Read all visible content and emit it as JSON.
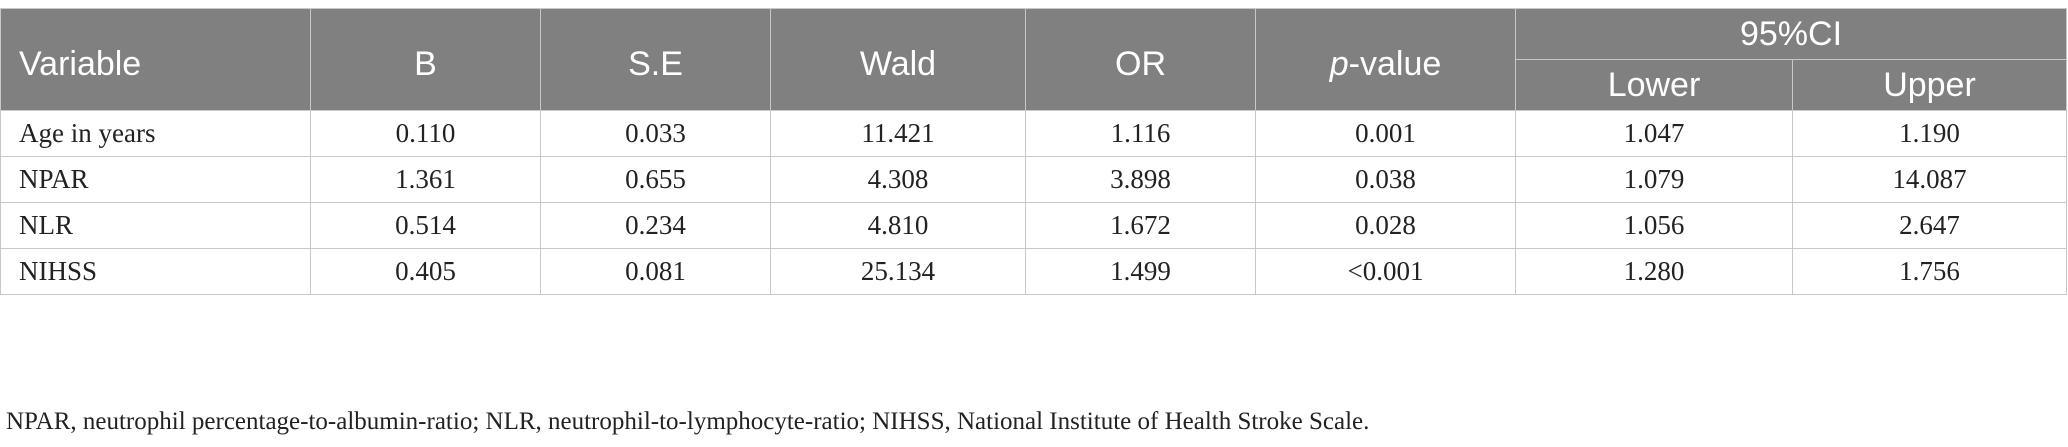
{
  "table": {
    "headers": {
      "variable": "Variable",
      "b": "B",
      "se": "S.E",
      "wald": "Wald",
      "or": "OR",
      "p_italic": "p",
      "p_rest": "-value",
      "ci": "95%CI",
      "lower": "Lower",
      "upper": "Upper"
    },
    "rows": [
      {
        "variable": "Age in years",
        "b": "0.110",
        "se": "0.033",
        "wald": "11.421",
        "or": "1.116",
        "p": "0.001",
        "lower": "1.047",
        "upper": "1.190"
      },
      {
        "variable": "NPAR",
        "b": "1.361",
        "se": "0.655",
        "wald": "4.308",
        "or": "3.898",
        "p": "0.038",
        "lower": "1.079",
        "upper": "14.087"
      },
      {
        "variable": "NLR",
        "b": "0.514",
        "se": "0.234",
        "wald": "4.810",
        "or": "1.672",
        "p": "0.028",
        "lower": "1.056",
        "upper": "2.647"
      },
      {
        "variable": "NIHSS",
        "b": "0.405",
        "se": "0.081",
        "wald": "25.134",
        "or": "1.499",
        "p": "<0.001",
        "lower": "1.280",
        "upper": "1.756"
      }
    ]
  },
  "footnote": "NPAR, neutrophil percentage-to-albumin-ratio; NLR, neutrophil-to-lymphocyte-ratio; NIHSS, National Institute of Health Stroke Scale.",
  "colors": {
    "header_bg": "#808080",
    "header_text": "#ffffff",
    "border": "#c8c8c8"
  }
}
